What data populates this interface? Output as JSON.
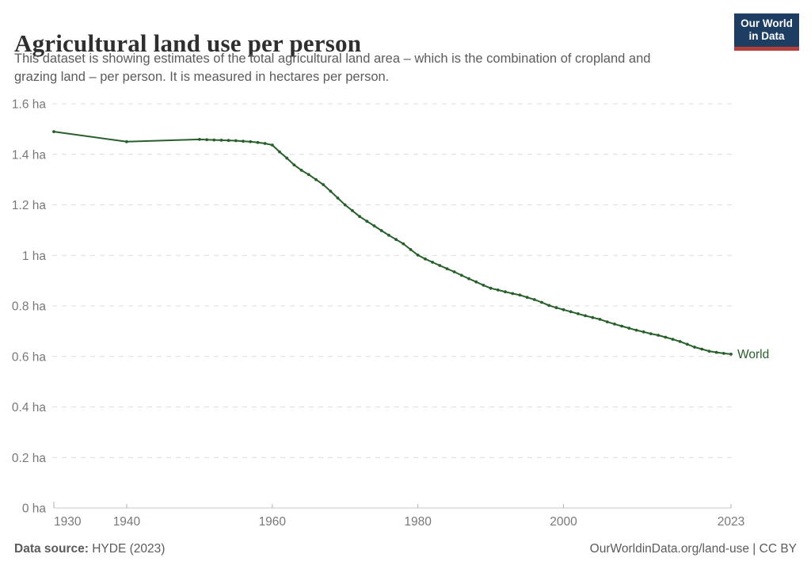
{
  "header": {
    "title": "Agricultural land use per person",
    "subtitle_lines": [
      "This dataset is showing estimates of the total agricultural land area – which is the combination of cropland and",
      "grazing land – per person. It is measured in hectares per person."
    ]
  },
  "logo": {
    "line1": "Our World",
    "line2": "in Data",
    "bg_color": "#1d3d63",
    "accent_color": "#b5403a"
  },
  "chart_data": {
    "type": "line",
    "title": "Agricultural land use per person",
    "xlabel": "",
    "ylabel": "hectares per person",
    "xlim": [
      1930,
      2023
    ],
    "ylim": [
      0,
      1.6
    ],
    "grid": "horizontal-dashed",
    "grid_color": "#dcdcdc",
    "axis_color": "#c8c8c8",
    "tick_color": "#b0b0b0",
    "tick_label_color": "#787878",
    "y_ticks": [
      {
        "value": 0,
        "label": "0 ha"
      },
      {
        "value": 0.2,
        "label": "0.2 ha"
      },
      {
        "value": 0.4,
        "label": "0.4 ha"
      },
      {
        "value": 0.6,
        "label": "0.6 ha"
      },
      {
        "value": 0.8,
        "label": "0.8 ha"
      },
      {
        "value": 1,
        "label": "1 ha"
      },
      {
        "value": 1.2,
        "label": "1.2 ha"
      },
      {
        "value": 1.4,
        "label": "1.4 ha"
      },
      {
        "value": 1.6,
        "label": "1.6 ha"
      }
    ],
    "x_ticks": [
      {
        "value": 1930,
        "label": "1930"
      },
      {
        "value": 1940,
        "label": "1940"
      },
      {
        "value": 1960,
        "label": "1960"
      },
      {
        "value": 1980,
        "label": "1980"
      },
      {
        "value": 2000,
        "label": "2000"
      },
      {
        "value": 2023,
        "label": "2023"
      }
    ],
    "series": [
      {
        "name": "World",
        "color": "#28602b",
        "end_label": "World",
        "points": [
          [
            1930,
            1.49
          ],
          [
            1940,
            1.45
          ],
          [
            1950,
            1.459
          ],
          [
            1951,
            1.458
          ],
          [
            1952,
            1.457
          ],
          [
            1953,
            1.456
          ],
          [
            1954,
            1.455
          ],
          [
            1955,
            1.454
          ],
          [
            1956,
            1.452
          ],
          [
            1957,
            1.45
          ],
          [
            1958,
            1.447
          ],
          [
            1959,
            1.443
          ],
          [
            1960,
            1.437
          ],
          [
            1961,
            1.41
          ],
          [
            1962,
            1.385
          ],
          [
            1963,
            1.358
          ],
          [
            1964,
            1.337
          ],
          [
            1965,
            1.32
          ],
          [
            1966,
            1.3
          ],
          [
            1967,
            1.28
          ],
          [
            1968,
            1.254
          ],
          [
            1969,
            1.227
          ],
          [
            1970,
            1.2
          ],
          [
            1971,
            1.177
          ],
          [
            1972,
            1.154
          ],
          [
            1973,
            1.135
          ],
          [
            1974,
            1.117
          ],
          [
            1975,
            1.098
          ],
          [
            1976,
            1.08
          ],
          [
            1977,
            1.063
          ],
          [
            1978,
            1.046
          ],
          [
            1979,
            1.023
          ],
          [
            1980,
            1.001
          ],
          [
            1981,
            0.986
          ],
          [
            1982,
            0.973
          ],
          [
            1983,
            0.96
          ],
          [
            1984,
            0.947
          ],
          [
            1985,
            0.935
          ],
          [
            1986,
            0.921
          ],
          [
            1987,
            0.908
          ],
          [
            1988,
            0.895
          ],
          [
            1989,
            0.882
          ],
          [
            1990,
            0.87
          ],
          [
            1991,
            0.863
          ],
          [
            1992,
            0.856
          ],
          [
            1993,
            0.849
          ],
          [
            1994,
            0.843
          ],
          [
            1995,
            0.834
          ],
          [
            1996,
            0.825
          ],
          [
            1997,
            0.814
          ],
          [
            1998,
            0.802
          ],
          [
            1999,
            0.793
          ],
          [
            2000,
            0.785
          ],
          [
            2001,
            0.777
          ],
          [
            2002,
            0.769
          ],
          [
            2003,
            0.761
          ],
          [
            2004,
            0.754
          ],
          [
            2005,
            0.747
          ],
          [
            2006,
            0.737
          ],
          [
            2007,
            0.728
          ],
          [
            2008,
            0.72
          ],
          [
            2009,
            0.712
          ],
          [
            2010,
            0.704
          ],
          [
            2011,
            0.697
          ],
          [
            2012,
            0.69
          ],
          [
            2013,
            0.684
          ],
          [
            2014,
            0.676
          ],
          [
            2015,
            0.668
          ],
          [
            2016,
            0.659
          ],
          [
            2017,
            0.648
          ],
          [
            2018,
            0.637
          ],
          [
            2019,
            0.629
          ],
          [
            2020,
            0.621
          ],
          [
            2021,
            0.616
          ],
          [
            2022,
            0.612
          ],
          [
            2023,
            0.609
          ]
        ]
      }
    ]
  },
  "footer": {
    "source_label": "Data source:",
    "source_value": " HYDE (2023)",
    "credit": "OurWorldinData.org/land-use | CC BY"
  }
}
